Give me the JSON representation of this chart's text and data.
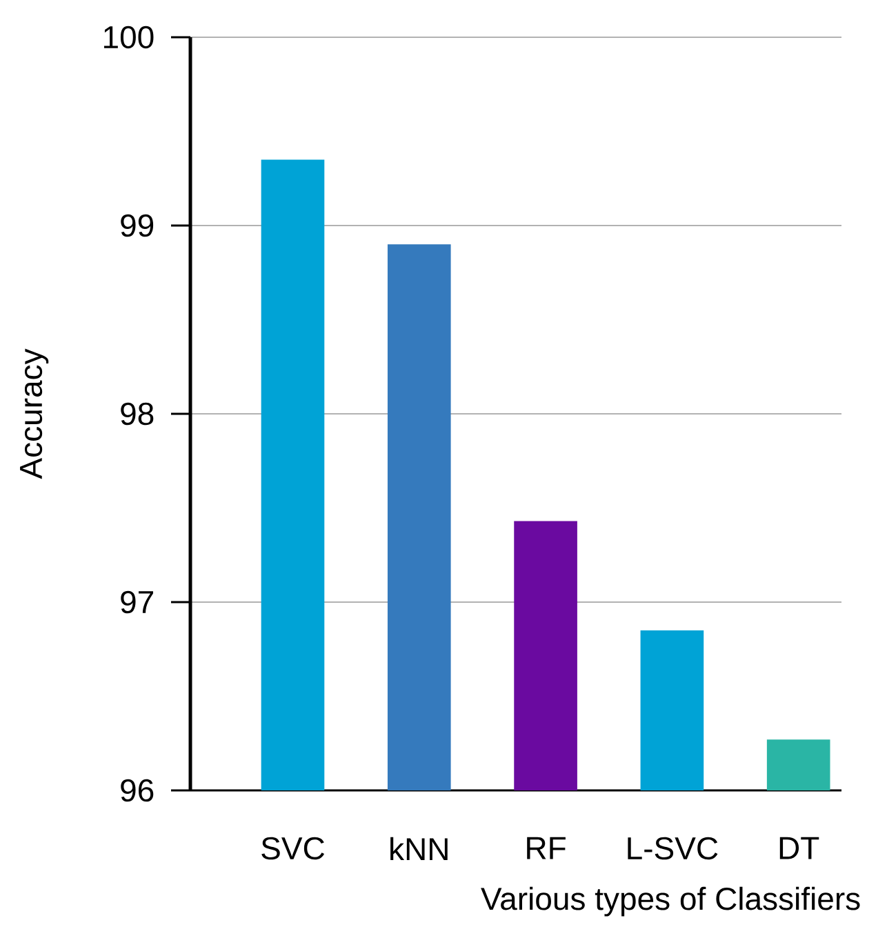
{
  "chart_data": {
    "type": "bar",
    "xlabel": "Various types of Classifiers",
    "ylabel": "Accuracy",
    "categories": [
      "SVC",
      "kNN",
      "RF",
      "L-SVC",
      "DT"
    ],
    "values": [
      99.35,
      98.9,
      97.43,
      96.85,
      96.27
    ],
    "colors": [
      "#00a3d6",
      "#357abd",
      "#6a0aa0",
      "#00a3d6",
      "#2ab5a5"
    ],
    "ylim": [
      96,
      100
    ],
    "yticks": [
      96,
      97,
      98,
      99,
      100
    ],
    "grid": "y"
  }
}
